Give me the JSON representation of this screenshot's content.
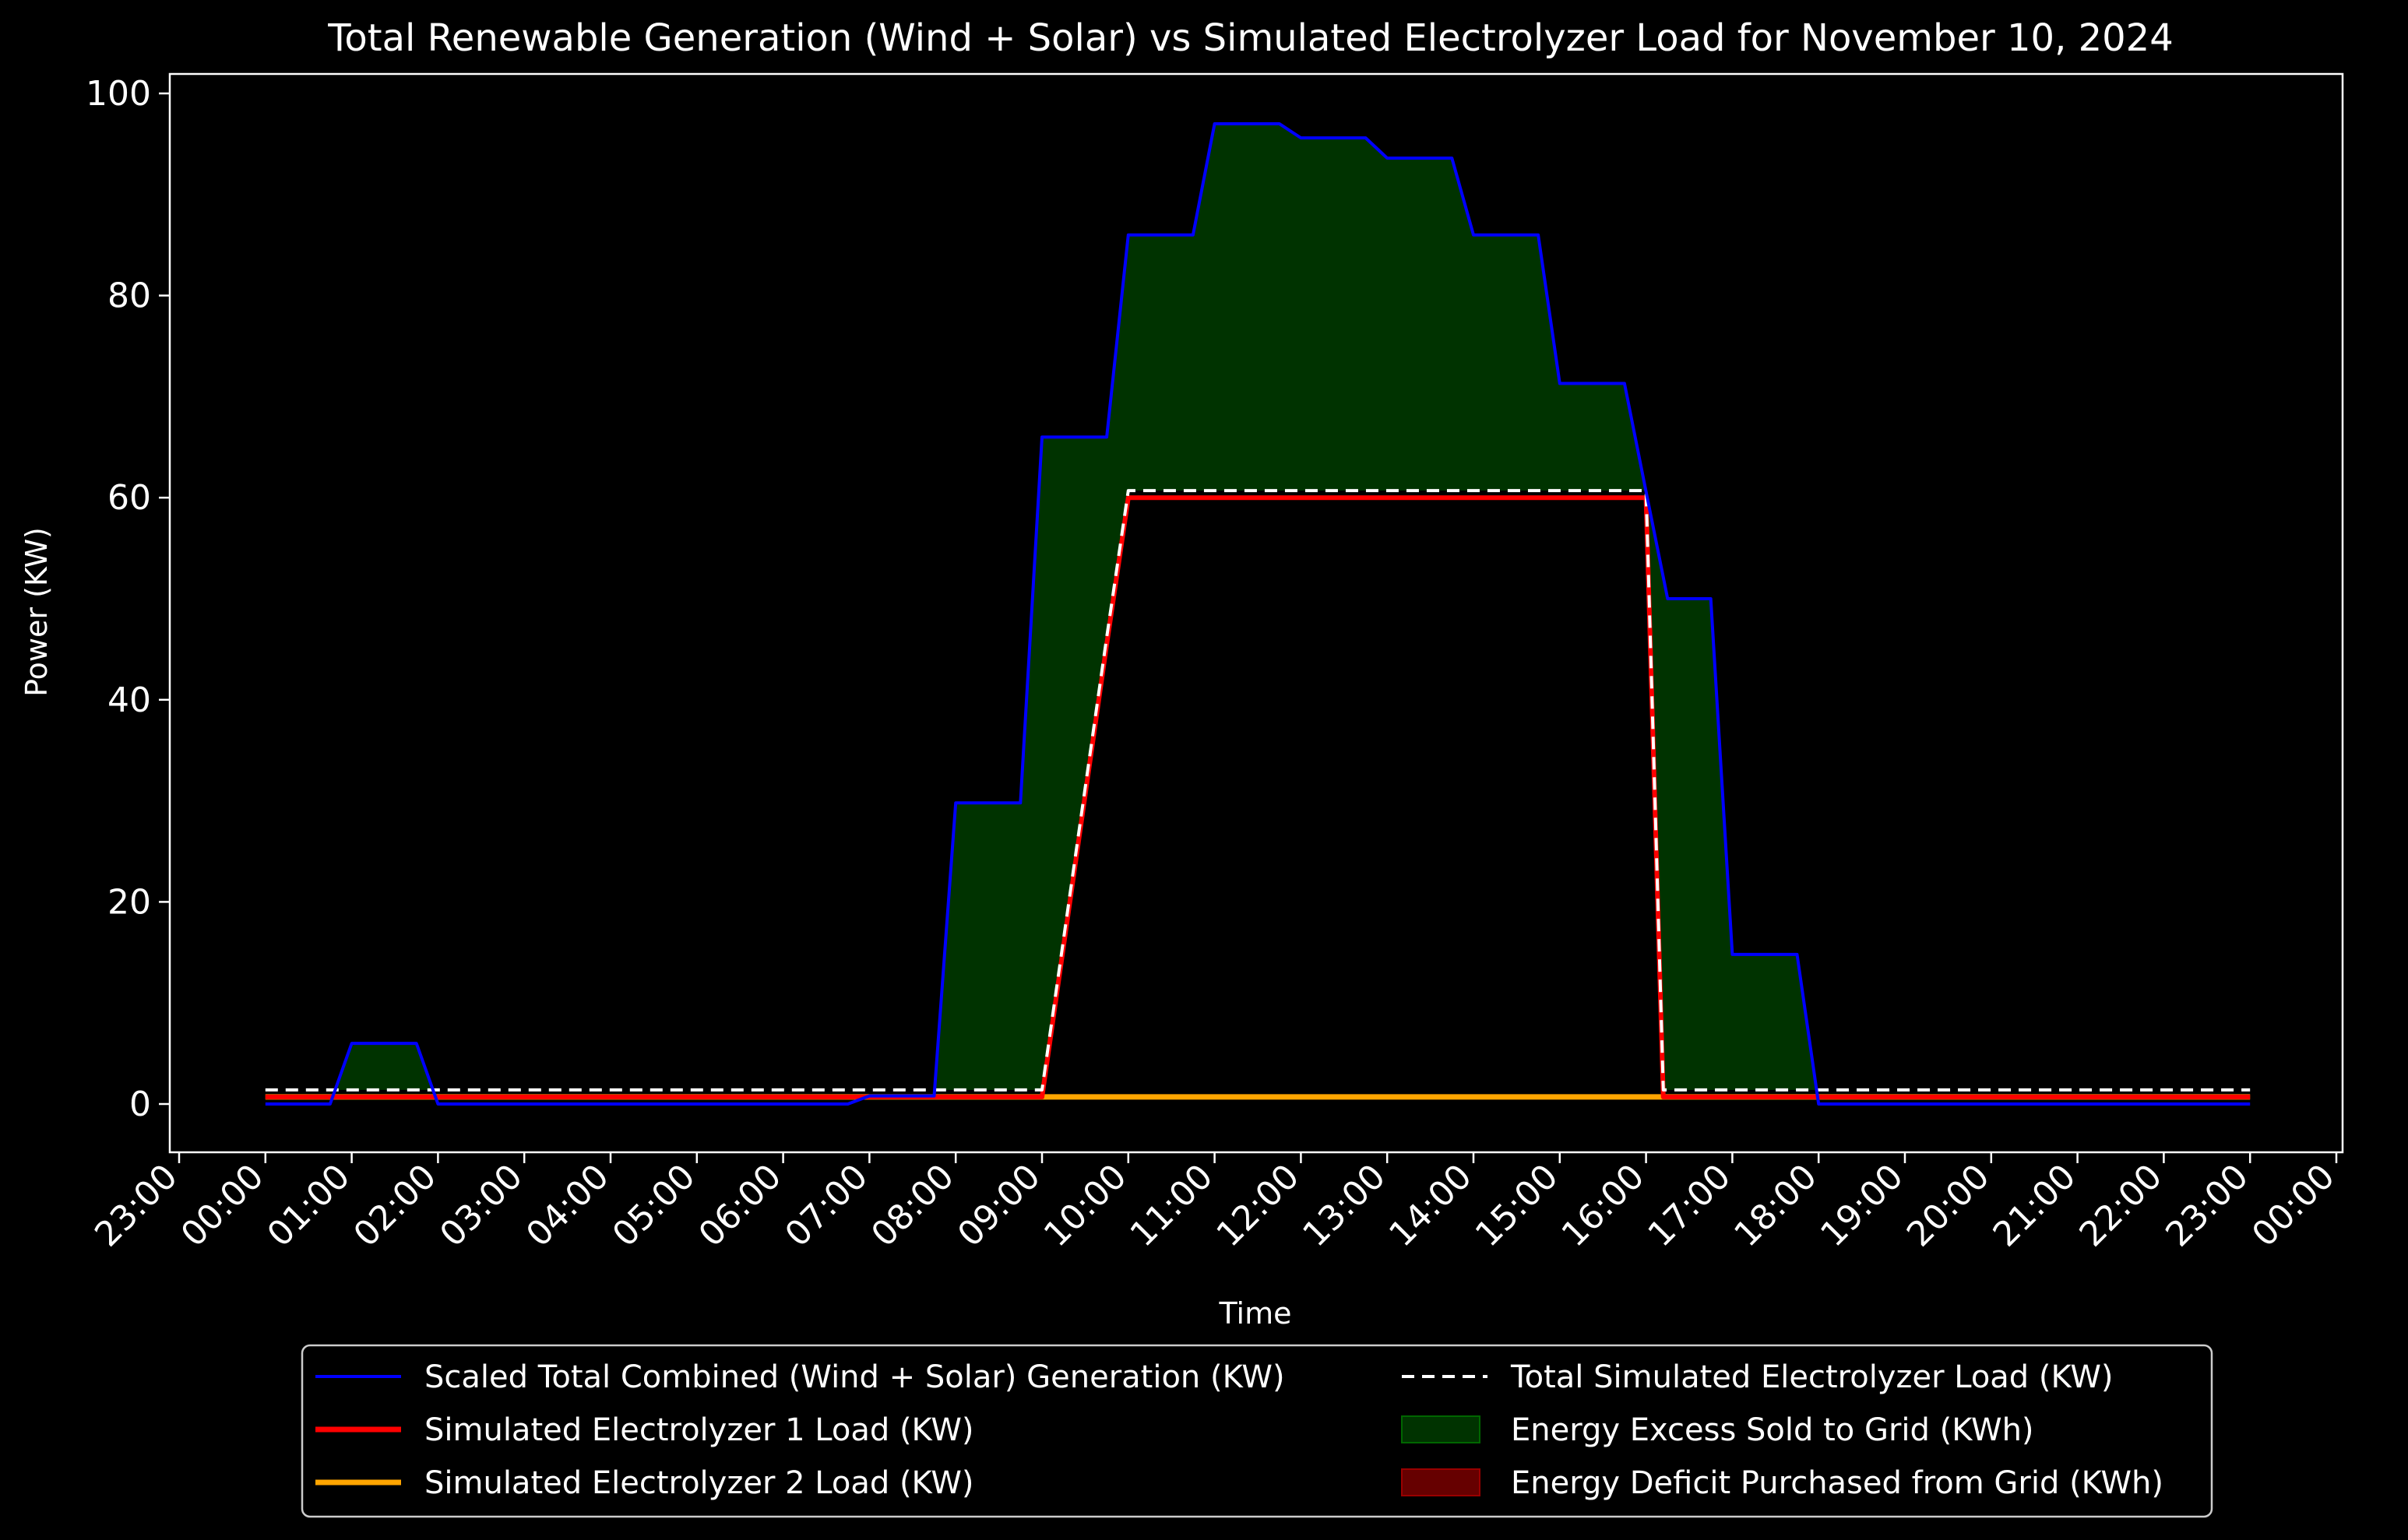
{
  "chart_data": {
    "type": "line",
    "title": "Total Renewable Generation (Wind + Solar) vs Simulated Electrolyzer Load for November 10, 2024",
    "xlabel": "Time",
    "ylabel": "Power (KW)",
    "ylim": [
      -5,
      102
    ],
    "xlim": [
      "23:00",
      "00:00"
    ],
    "y_ticks": [
      "0",
      "20",
      "40",
      "60",
      "80",
      "100"
    ],
    "x_ticks": [
      "23:00",
      "00:00",
      "01:00",
      "02:00",
      "03:00",
      "04:00",
      "05:00",
      "06:00",
      "07:00",
      "08:00",
      "09:00",
      "10:00",
      "11:00",
      "12:00",
      "13:00",
      "14:00",
      "15:00",
      "16:00",
      "17:00",
      "18:00",
      "19:00",
      "20:00",
      "21:00",
      "22:00",
      "23:00",
      "00:00"
    ],
    "grid": false,
    "legend_position": "below-center",
    "series": [
      {
        "name": "Scaled Total Combined (Wind + Solar) Generation (KW)",
        "color": "#0000ff",
        "style": "solid",
        "points": [
          [
            "00:00",
            0
          ],
          [
            "00:45",
            0
          ],
          [
            "01:00",
            6
          ],
          [
            "01:45",
            6
          ],
          [
            "02:00",
            0
          ],
          [
            "06:45",
            0
          ],
          [
            "07:00",
            0.8
          ],
          [
            "07:45",
            0.8
          ],
          [
            "08:00",
            29.8
          ],
          [
            "08:45",
            29.8
          ],
          [
            "09:00",
            66
          ],
          [
            "09:45",
            66
          ],
          [
            "10:00",
            86
          ],
          [
            "10:45",
            86
          ],
          [
            "11:00",
            97
          ],
          [
            "11:45",
            97
          ],
          [
            "12:00",
            95.6
          ],
          [
            "12:45",
            95.6
          ],
          [
            "13:00",
            93.6
          ],
          [
            "13:45",
            93.6
          ],
          [
            "14:00",
            86
          ],
          [
            "14:45",
            86
          ],
          [
            "15:00",
            71.3
          ],
          [
            "15:45",
            71.3
          ],
          [
            "16:00",
            60.6
          ],
          [
            "16:15",
            50
          ],
          [
            "16:45",
            50
          ],
          [
            "17:00",
            14.8
          ],
          [
            "17:45",
            14.8
          ],
          [
            "18:00",
            0
          ],
          [
            "23:00",
            0
          ]
        ]
      },
      {
        "name": "Simulated Electrolyzer 1 Load (KW)",
        "color": "#ff0000",
        "style": "solid",
        "points": [
          [
            "00:00",
            0.7
          ],
          [
            "09:00",
            0.7
          ],
          [
            "09:45",
            45.5
          ],
          [
            "10:00",
            60
          ],
          [
            "16:00",
            60
          ],
          [
            "16:12",
            0.7
          ],
          [
            "23:00",
            0.7
          ]
        ]
      },
      {
        "name": "Simulated Electrolyzer 2 Load (KW)",
        "color": "#ffa500",
        "style": "solid",
        "points": [
          [
            "00:00",
            0.7
          ],
          [
            "23:00",
            0.7
          ]
        ]
      },
      {
        "name": "Total Simulated Electrolyzer Load (KW)",
        "color": "#ffffff",
        "style": "dashed",
        "points": [
          [
            "00:00",
            1.4
          ],
          [
            "09:00",
            1.4
          ],
          [
            "09:45",
            46.2
          ],
          [
            "10:00",
            60.7
          ],
          [
            "16:00",
            60.7
          ],
          [
            "16:12",
            1.4
          ],
          [
            "23:00",
            1.4
          ]
        ]
      }
    ],
    "fills": [
      {
        "name": "Energy Excess Sold to Grid (KWh)",
        "color": "#003300",
        "border": "#006600"
      },
      {
        "name": "Energy Deficit Purchased from Grid (KWh)",
        "color": "#660000",
        "border": "#990000"
      }
    ]
  }
}
